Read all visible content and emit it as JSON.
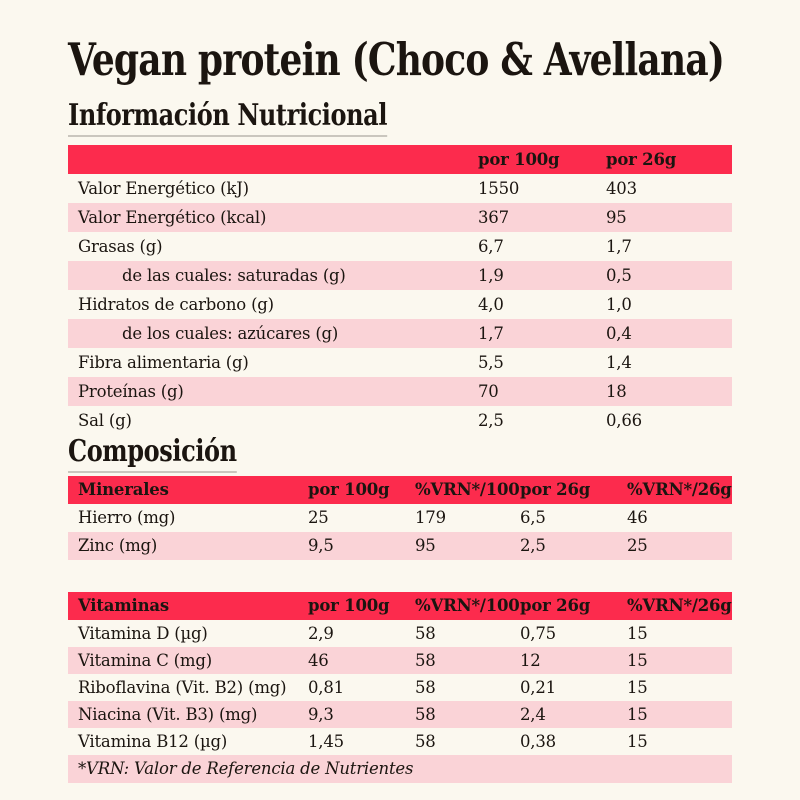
{
  "theme": {
    "background": "#FBF8EF",
    "accent_red": "#FC2B4D",
    "row_pink": "#FAD3D7",
    "text": "#1B1510"
  },
  "page": {
    "title": "Vegan protein (Choco & Avellana)"
  },
  "nutrition": {
    "heading": "Información Nutricional",
    "columns": [
      "por 100g",
      "por 26g"
    ],
    "rows": [
      {
        "label": "Valor Energético (kJ)",
        "per100g": "1550",
        "per26g": "403"
      },
      {
        "label": "Valor Energético (kcal)",
        "per100g": "367",
        "per26g": "95"
      },
      {
        "label": "Grasas (g)",
        "per100g": "6,7",
        "per26g": "1,7"
      },
      {
        "label": "de las cuales: saturadas (g)",
        "per100g": "1,9",
        "per26g": "0,5"
      },
      {
        "label": "Hidratos de carbono (g)",
        "per100g": "4,0",
        "per26g": "1,0"
      },
      {
        "label": "de los cuales: azúcares (g)",
        "per100g": "1,7",
        "per26g": "0,4"
      },
      {
        "label": "Fibra alimentaria (g)",
        "per100g": "5,5",
        "per26g": "1,4"
      },
      {
        "label": "Proteínas (g)",
        "per100g": "70",
        "per26g": "18"
      },
      {
        "label": "Sal (g)",
        "per100g": "2,5",
        "per26g": "0,66"
      }
    ]
  },
  "composition": {
    "heading": "Composición",
    "minerals": {
      "columns": [
        "Minerales",
        "por 100g",
        "%VRN*/100g",
        "por 26g",
        "%VRN*/26g"
      ],
      "rows": [
        {
          "label": "Hierro (mg)",
          "per100g": "25",
          "vrn100g": "179",
          "per26g": "6,5",
          "vrn26g": "46"
        },
        {
          "label": "Zinc (mg)",
          "per100g": "9,5",
          "vrn100g": "95",
          "per26g": "2,5",
          "vrn26g": "25"
        }
      ]
    },
    "vitamins": {
      "columns": [
        "Vitaminas",
        "por 100g",
        "%VRN*/100g",
        "por 26g",
        "%VRN*/26g"
      ],
      "rows": [
        {
          "label": "Vitamina D (µg)",
          "per100g": "2,9",
          "vrn100g": "58",
          "per26g": "0,75",
          "vrn26g": "15"
        },
        {
          "label": "Vitamina C (mg)",
          "per100g": "46",
          "vrn100g": "58",
          "per26g": "12",
          "vrn26g": "15"
        },
        {
          "label": "Riboflavina (Vit. B2) (mg)",
          "per100g": "0,81",
          "vrn100g": "58",
          "per26g": "0,21",
          "vrn26g": "15"
        },
        {
          "label": "Niacina (Vit. B3) (mg)",
          "per100g": "9,3",
          "vrn100g": "58",
          "per26g": "2,4",
          "vrn26g": "15"
        },
        {
          "label": "Vitamina B12 (µg)",
          "per100g": "1,45",
          "vrn100g": "58",
          "per26g": "0,38",
          "vrn26g": "15"
        }
      ]
    },
    "footnote": "*VRN: Valor de Referencia de Nutrientes"
  }
}
